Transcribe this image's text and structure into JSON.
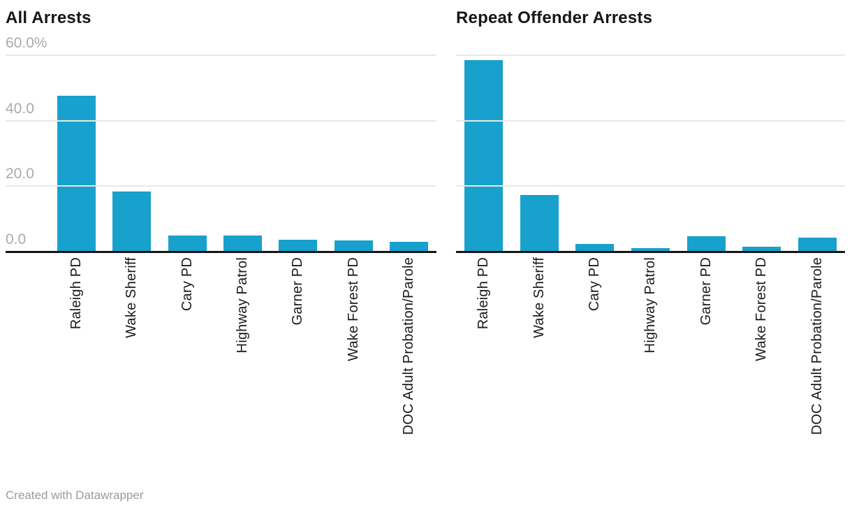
{
  "page": {
    "background": "#ffffff",
    "footer": "Created with Datawrapper"
  },
  "colors": {
    "bar": "#18a1cc",
    "gridline": "#e8e8e8",
    "axis_line": "#151515",
    "tick_label": "#ababab",
    "title_text": "#161616",
    "category_text": "#1b1b1b",
    "footer_text": "#9b9b9b"
  },
  "chart_data": [
    {
      "type": "bar",
      "title": "All Arrests",
      "categories": [
        "Raleigh PD",
        "Wake Sheriff",
        "Cary PD",
        "Highway Patrol",
        "Garner PD",
        "Wake Forest PD",
        "DOC Adult Probation/Parole"
      ],
      "values": [
        47.5,
        18.1,
        4.8,
        4.8,
        3.5,
        3.3,
        2.7
      ],
      "unit": "%",
      "ylim": [
        0,
        60
      ],
      "yticks": [
        {
          "label": "60.0%",
          "value": 60
        },
        {
          "label": "40.0",
          "value": 40
        },
        {
          "label": "20.0",
          "value": 20
        },
        {
          "label": "0.0",
          "value": 0
        }
      ],
      "show_ytick_labels": true,
      "grid": true,
      "legend": "none",
      "bar_color": "#18a1cc",
      "xlabel": "",
      "ylabel": ""
    },
    {
      "type": "bar",
      "title": "Repeat Offender Arrests",
      "categories": [
        "Raleigh PD",
        "Wake Sheriff",
        "Cary PD",
        "Highway Patrol",
        "Garner PD",
        "Wake Forest PD",
        "DOC Adult Probation/Parole"
      ],
      "values": [
        58.3,
        17.1,
        2.2,
        0.8,
        4.5,
        1.2,
        4.0
      ],
      "unit": "%",
      "ylim": [
        0,
        60
      ],
      "yticks": [
        {
          "label": "60.0%",
          "value": 60
        },
        {
          "label": "40.0",
          "value": 40
        },
        {
          "label": "20.0",
          "value": 20
        },
        {
          "label": "0.0",
          "value": 0
        }
      ],
      "show_ytick_labels": false,
      "grid": true,
      "legend": "none",
      "bar_color": "#18a1cc",
      "xlabel": "",
      "ylabel": ""
    }
  ]
}
